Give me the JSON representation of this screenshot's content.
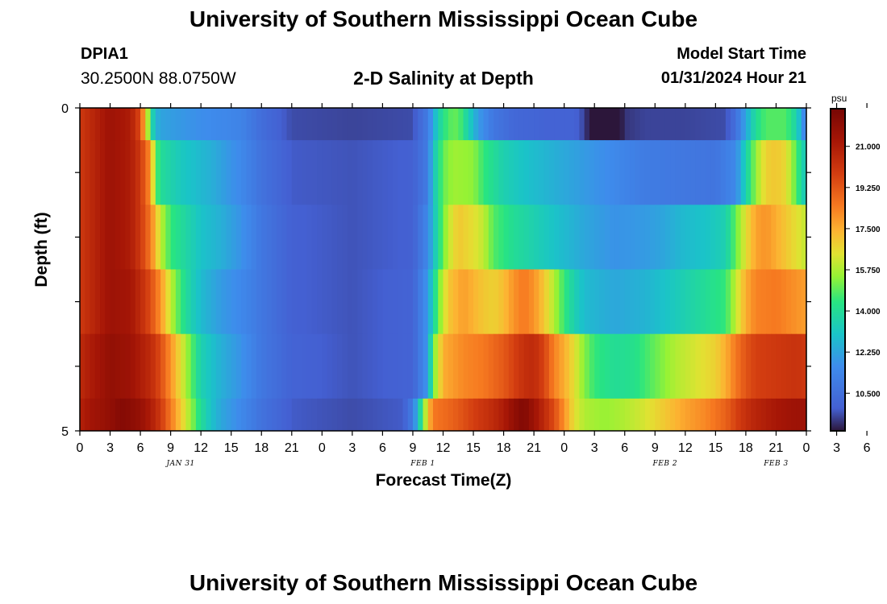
{
  "header": {
    "title": "University of Southern Mississippi Ocean Cube",
    "station_id": "DPIA1",
    "coordinates": "30.2500N  88.0750W",
    "chart_title": "2-D Salinity at Depth",
    "start_label": "Model Start Time",
    "start_value": "01/31/2024 Hour 21"
  },
  "footer": {
    "title": "University of Southern Mississippi Ocean Cube"
  },
  "chart_data": {
    "type": "heatmap",
    "title": "2-D Salinity at Depth",
    "xlabel": "Forecast Time(Z)",
    "ylabel": "Depth (ft)",
    "x_tick_labels": [
      "0",
      "3",
      "6",
      "9",
      "12",
      "15",
      "18",
      "21",
      "0",
      "3",
      "6",
      "9",
      "12",
      "15",
      "18",
      "21",
      "0",
      "3",
      "6",
      "9",
      "12",
      "15",
      "18",
      "21",
      "0",
      "3",
      "6"
    ],
    "day_labels": [
      "JAN 31",
      "FEB 1",
      "FEB 2",
      "FEB 3"
    ],
    "y_tick_labels": [
      "0",
      "5"
    ],
    "y_range": [
      0,
      5
    ],
    "colorbar": {
      "unit": "psu",
      "labels": [
        "21.000",
        "19.250",
        "17.500",
        "15.750",
        "14.000",
        "12.250",
        "10.500"
      ],
      "min": 8.9,
      "max": 22.6
    },
    "grid": false,
    "layers": [
      {
        "depth_range": [
          0,
          0.5
        ],
        "profile": [
          [
            0,
            20
          ],
          [
            1,
            20.5
          ],
          [
            3,
            21.5
          ],
          [
            5,
            21
          ],
          [
            6,
            19.5
          ],
          [
            6.5,
            17
          ],
          [
            7,
            14.5
          ],
          [
            7.4,
            12.8
          ],
          [
            8,
            12.2
          ],
          [
            11,
            11.8
          ],
          [
            16,
            11.3
          ],
          [
            18,
            10.4
          ],
          [
            21,
            9.6
          ],
          [
            27,
            9.5
          ],
          [
            33,
            9.6
          ],
          [
            34.5,
            11
          ],
          [
            35.5,
            13.5
          ],
          [
            36.5,
            14.8
          ],
          [
            37.5,
            15
          ],
          [
            38.5,
            13.5
          ],
          [
            39.5,
            12
          ],
          [
            41,
            10.8
          ],
          [
            43,
            10.2
          ],
          [
            46,
            10
          ],
          [
            49,
            10
          ],
          [
            50,
            9.5
          ],
          [
            51,
            8.2
          ],
          [
            52,
            7.6
          ],
          [
            53,
            8.2
          ],
          [
            54,
            9.3
          ],
          [
            56,
            9.5
          ],
          [
            60,
            9.5
          ],
          [
            64,
            9.6
          ],
          [
            65,
            10.5
          ],
          [
            66,
            12.3
          ],
          [
            67,
            14
          ],
          [
            68,
            14.8
          ],
          [
            70,
            14.8
          ],
          [
            71,
            13.6
          ],
          [
            72,
            11
          ]
        ]
      },
      {
        "depth_range": [
          0.5,
          1.5
        ],
        "profile": [
          [
            0,
            20
          ],
          [
            1,
            20.5
          ],
          [
            3,
            21.5
          ],
          [
            5,
            21
          ],
          [
            6,
            20
          ],
          [
            7,
            18
          ],
          [
            7.5,
            15
          ],
          [
            8,
            14
          ],
          [
            10,
            13.2
          ],
          [
            13,
            12.5
          ],
          [
            16,
            11.5
          ],
          [
            18,
            10.6
          ],
          [
            21,
            9.8
          ],
          [
            27,
            9.7
          ],
          [
            33,
            9.9
          ],
          [
            34.5,
            11
          ],
          [
            35,
            13
          ],
          [
            36,
            15
          ],
          [
            37,
            15.6
          ],
          [
            39,
            15.4
          ],
          [
            40,
            14.5
          ],
          [
            42,
            13.5
          ],
          [
            44,
            13
          ],
          [
            47,
            12.5
          ],
          [
            50,
            12
          ],
          [
            53,
            11.5
          ],
          [
            56,
            11
          ],
          [
            60,
            10.8
          ],
          [
            63,
            10.7
          ],
          [
            65,
            11.5
          ],
          [
            66,
            13.5
          ],
          [
            67,
            15.5
          ],
          [
            68,
            16.8
          ],
          [
            69,
            17
          ],
          [
            70,
            16.6
          ],
          [
            71,
            14.8
          ],
          [
            72,
            13
          ]
        ]
      },
      {
        "depth_range": [
          1.5,
          2.5
        ],
        "profile": [
          [
            0,
            20
          ],
          [
            1,
            20.5
          ],
          [
            3,
            21.5
          ],
          [
            5,
            21
          ],
          [
            6,
            20
          ],
          [
            7,
            18.5
          ],
          [
            8,
            16
          ],
          [
            9,
            14.5
          ],
          [
            10,
            14
          ],
          [
            12,
            13
          ],
          [
            14,
            12.5
          ],
          [
            16,
            11.8
          ],
          [
            18,
            10.8
          ],
          [
            21,
            9.9
          ],
          [
            27,
            9.7
          ],
          [
            33,
            9.9
          ],
          [
            34.5,
            11.5
          ],
          [
            35.5,
            14
          ],
          [
            36.5,
            16
          ],
          [
            37.5,
            17
          ],
          [
            39,
            16.5
          ],
          [
            40,
            16
          ],
          [
            41,
            14.8
          ],
          [
            43,
            14
          ],
          [
            45,
            13.5
          ],
          [
            47,
            13
          ],
          [
            50,
            12.3
          ],
          [
            53,
            11.8
          ],
          [
            56,
            12
          ],
          [
            58,
            12.3
          ],
          [
            60,
            12.8
          ],
          [
            62,
            13
          ],
          [
            64,
            13.5
          ],
          [
            65,
            15
          ],
          [
            66,
            16.5
          ],
          [
            67,
            17.7
          ],
          [
            68,
            18
          ],
          [
            69,
            17.5
          ],
          [
            70,
            17
          ],
          [
            71,
            16.5
          ],
          [
            72,
            16
          ]
        ]
      },
      {
        "depth_range": [
          2.5,
          3.5
        ],
        "profile": [
          [
            0,
            20
          ],
          [
            1,
            20.5
          ],
          [
            3,
            21.5
          ],
          [
            5,
            21.3
          ],
          [
            6,
            20.5
          ],
          [
            7,
            19.5
          ],
          [
            8,
            18
          ],
          [
            9,
            16
          ],
          [
            10,
            14.5
          ],
          [
            11,
            13.5
          ],
          [
            12,
            12.8
          ],
          [
            14,
            12
          ],
          [
            16,
            11.5
          ],
          [
            18,
            10.8
          ],
          [
            21,
            9.9
          ],
          [
            27,
            9.7
          ],
          [
            33,
            10
          ],
          [
            34.5,
            12
          ],
          [
            35.5,
            15
          ],
          [
            36.5,
            17
          ],
          [
            38,
            17.8
          ],
          [
            40,
            17
          ],
          [
            41,
            16.8
          ],
          [
            42,
            17.2
          ],
          [
            43,
            18
          ],
          [
            44,
            18.5
          ],
          [
            45,
            18
          ],
          [
            46,
            17
          ],
          [
            47,
            15.8
          ],
          [
            48,
            14.5
          ],
          [
            49,
            13.5
          ],
          [
            50,
            12.8
          ],
          [
            53,
            12.3
          ],
          [
            56,
            12.6
          ],
          [
            58,
            13
          ],
          [
            60,
            13.5
          ],
          [
            62,
            14
          ],
          [
            64,
            14.5
          ],
          [
            65,
            16
          ],
          [
            66,
            17.5
          ],
          [
            67,
            18.3
          ],
          [
            69,
            18.5
          ],
          [
            71,
            18
          ],
          [
            72,
            17.8
          ]
        ]
      },
      {
        "depth_range": [
          3.5,
          4.5
        ],
        "profile": [
          [
            0,
            20.5
          ],
          [
            1,
            21
          ],
          [
            3,
            21.8
          ],
          [
            5,
            21.5
          ],
          [
            6,
            21
          ],
          [
            7,
            20.5
          ],
          [
            8,
            19.5
          ],
          [
            9,
            18
          ],
          [
            10,
            16.5
          ],
          [
            11,
            15
          ],
          [
            12,
            13.5
          ],
          [
            14,
            12.5
          ],
          [
            16,
            11.8
          ],
          [
            18,
            10.8
          ],
          [
            21,
            10
          ],
          [
            27,
            9.7
          ],
          [
            33,
            10
          ],
          [
            34.5,
            12
          ],
          [
            35,
            15
          ],
          [
            36,
            17.5
          ],
          [
            38,
            18.2
          ],
          [
            40,
            18.5
          ],
          [
            42,
            19.2
          ],
          [
            44,
            20.3
          ],
          [
            45,
            20.5
          ],
          [
            46,
            19.7
          ],
          [
            47,
            18.3
          ],
          [
            48,
            17.5
          ],
          [
            49,
            16.5
          ],
          [
            50,
            15.3
          ],
          [
            51,
            14.5
          ],
          [
            53,
            14
          ],
          [
            55,
            14.2
          ],
          [
            57,
            15
          ],
          [
            59,
            15.8
          ],
          [
            61,
            16.3
          ],
          [
            63,
            16.8
          ],
          [
            64,
            17.5
          ],
          [
            65,
            18.5
          ],
          [
            66,
            19.3
          ],
          [
            67,
            19.8
          ],
          [
            69,
            20
          ],
          [
            71,
            20.2
          ],
          [
            72,
            20
          ]
        ]
      },
      {
        "depth_range": [
          4.5,
          5
        ],
        "profile": [
          [
            0,
            20.8
          ],
          [
            1,
            21.3
          ],
          [
            3,
            21.8
          ],
          [
            4,
            22.2
          ],
          [
            5,
            22
          ],
          [
            6,
            21.7
          ],
          [
            7,
            21
          ],
          [
            8,
            20
          ],
          [
            9,
            18.5
          ],
          [
            10,
            17
          ],
          [
            11,
            15.5
          ],
          [
            12,
            14
          ],
          [
            13,
            13
          ],
          [
            14,
            12.3
          ],
          [
            16,
            11.5
          ],
          [
            18,
            10.6
          ],
          [
            21,
            9.8
          ],
          [
            27,
            9.6
          ],
          [
            32,
            9.8
          ],
          [
            33,
            11
          ],
          [
            33.8,
            14
          ],
          [
            34.5,
            17
          ],
          [
            35,
            18.5
          ],
          [
            37,
            19
          ],
          [
            39,
            19.8
          ],
          [
            41,
            20.5
          ],
          [
            42,
            21
          ],
          [
            43,
            21.8
          ],
          [
            44,
            22.3
          ],
          [
            45,
            21.5
          ],
          [
            46,
            20.5
          ],
          [
            47,
            19.5
          ],
          [
            48,
            18
          ],
          [
            49,
            16.5
          ],
          [
            50,
            15.8
          ],
          [
            52,
            15.5
          ],
          [
            54,
            15.8
          ],
          [
            56,
            16.3
          ],
          [
            58,
            17
          ],
          [
            60,
            17.7
          ],
          [
            62,
            18.2
          ],
          [
            64,
            19
          ],
          [
            65,
            19.7
          ],
          [
            66,
            20.3
          ],
          [
            67,
            20.7
          ],
          [
            69,
            21.2
          ],
          [
            71,
            21.5
          ],
          [
            72,
            21.5
          ]
        ]
      }
    ]
  }
}
